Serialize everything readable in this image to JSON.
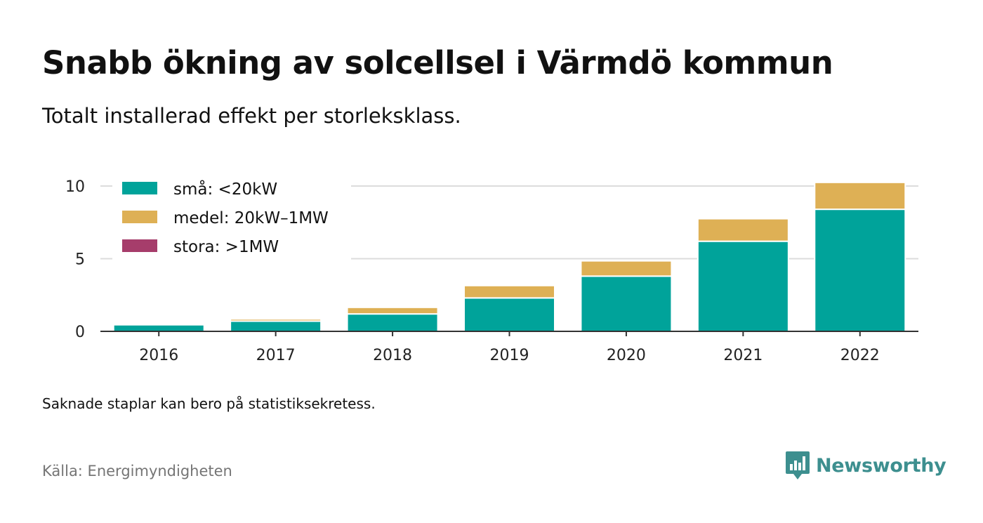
{
  "title": "Snabb ökning av solcellsel i Värmdö kommun",
  "subtitle": "Totalt installerad effekt per storleksklass.",
  "note": "Saknade staplar kan bero på statistiksekretess.",
  "source": "Källa: Energimyndigheten",
  "brand": {
    "name": "Newsworthy",
    "icon": "newsworthy-logo-icon",
    "color": "#3d8f8f"
  },
  "colors": {
    "grid": "#dcdcdc",
    "axis": "#333333",
    "tick_text": "#222222"
  },
  "chart_data": {
    "type": "bar",
    "stacked": true,
    "categories": [
      "2016",
      "2017",
      "2018",
      "2019",
      "2020",
      "2021",
      "2022"
    ],
    "series": [
      {
        "name": "små: <20kW",
        "color": "#00a39a",
        "values": [
          0.45,
          0.7,
          1.2,
          2.3,
          3.8,
          6.2,
          8.4
        ]
      },
      {
        "name": "medel: 20kW–1MW",
        "color": "#deb055",
        "values": [
          0.0,
          0.15,
          0.45,
          0.85,
          1.05,
          1.55,
          1.85
        ]
      },
      {
        "name": "stora: >1MW",
        "color": "#a63d6b",
        "values": [
          0,
          0,
          0,
          0,
          0,
          0,
          0
        ]
      }
    ],
    "yticks": [
      0,
      5,
      10
    ],
    "ylim": [
      0,
      10.5
    ],
    "grid": true,
    "legend_position": "top-left"
  }
}
